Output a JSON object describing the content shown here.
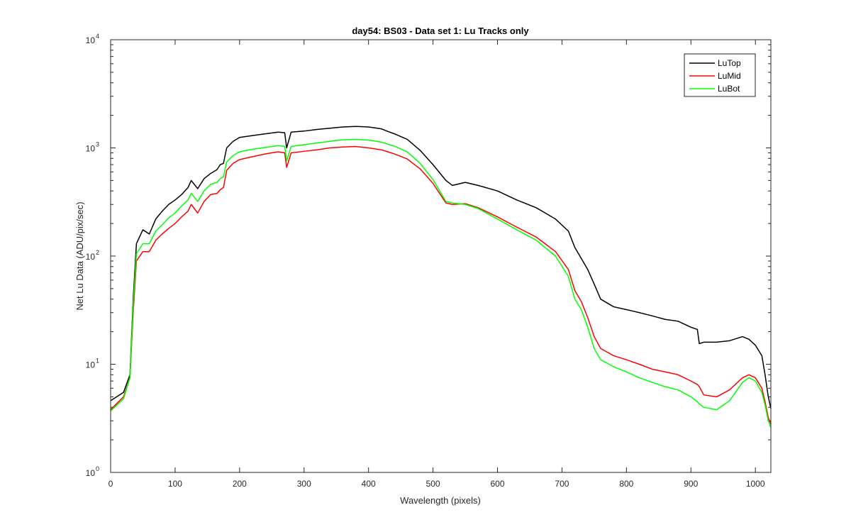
{
  "chart_data": {
    "type": "line",
    "title": "day54: BS03 - Data set 1: Lu Tracks only",
    "xlabel": "Wavelength (pixels)",
    "ylabel": "Net Lu Data (ADU/pix/sec)",
    "xlim": [
      0,
      1024
    ],
    "ylim": [
      1,
      10000
    ],
    "yscale": "log",
    "grid": false,
    "legend_position": "top-right",
    "x_ticks": [
      0,
      100,
      200,
      300,
      400,
      500,
      600,
      700,
      800,
      900,
      1000
    ],
    "y_ticks": [
      {
        "value": 1,
        "base": "10",
        "exp": "0"
      },
      {
        "value": 10,
        "base": "10",
        "exp": "1"
      },
      {
        "value": 100,
        "base": "10",
        "exp": "2"
      },
      {
        "value": 1000,
        "base": "10",
        "exp": "3"
      },
      {
        "value": 10000,
        "base": "10",
        "exp": "4"
      }
    ],
    "x": [
      0,
      20,
      30,
      35,
      40,
      50,
      60,
      70,
      80,
      90,
      100,
      110,
      120,
      125,
      135,
      145,
      155,
      165,
      170,
      175,
      180,
      190,
      200,
      220,
      240,
      260,
      270,
      273,
      280,
      300,
      320,
      340,
      360,
      380,
      400,
      420,
      430,
      440,
      460,
      480,
      500,
      520,
      530,
      550,
      570,
      600,
      630,
      660,
      690,
      710,
      720,
      730,
      740,
      750,
      760,
      780,
      800,
      820,
      840,
      860,
      880,
      900,
      910,
      913,
      920,
      940,
      960,
      980,
      990,
      1000,
      1010,
      1015,
      1020,
      1024
    ],
    "series": [
      {
        "name": "LuTop",
        "color": "#000000",
        "values": [
          4.6,
          5.5,
          8,
          40,
          130,
          175,
          160,
          220,
          260,
          300,
          330,
          370,
          430,
          500,
          420,
          520,
          580,
          630,
          700,
          720,
          1000,
          1150,
          1250,
          1300,
          1350,
          1400,
          1380,
          1000,
          1400,
          1430,
          1480,
          1520,
          1560,
          1580,
          1560,
          1500,
          1420,
          1350,
          1200,
          950,
          700,
          500,
          450,
          480,
          450,
          400,
          330,
          280,
          220,
          170,
          120,
          95,
          75,
          55,
          40,
          34,
          32,
          30,
          28,
          26,
          25,
          22,
          21,
          15.5,
          16,
          16,
          16.5,
          18,
          17,
          15,
          12,
          8,
          5,
          3.9
        ]
      },
      {
        "name": "LuMid",
        "color": "#ff0000",
        "values": [
          3.8,
          5,
          7.5,
          30,
          90,
          110,
          110,
          140,
          160,
          180,
          200,
          230,
          260,
          300,
          250,
          320,
          370,
          380,
          410,
          430,
          620,
          720,
          780,
          830,
          880,
          920,
          900,
          660,
          900,
          930,
          960,
          1000,
          1020,
          1030,
          1000,
          960,
          920,
          880,
          790,
          640,
          470,
          310,
          300,
          305,
          280,
          230,
          185,
          150,
          110,
          75,
          48,
          38,
          27,
          18,
          14,
          12,
          11,
          10,
          9,
          8.5,
          8,
          7,
          6.5,
          6.2,
          5.2,
          5,
          5.8,
          7.5,
          8,
          7.5,
          6,
          4.5,
          3.2,
          2.8
        ]
      },
      {
        "name": "LuBot",
        "color": "#00ff00",
        "values": [
          3.7,
          4.8,
          7.5,
          35,
          105,
          130,
          130,
          170,
          195,
          225,
          250,
          290,
          330,
          380,
          320,
          400,
          460,
          480,
          520,
          540,
          740,
          850,
          920,
          970,
          1010,
          1050,
          1030,
          760,
          1030,
          1070,
          1110,
          1150,
          1190,
          1200,
          1180,
          1130,
          1080,
          1040,
          920,
          720,
          510,
          320,
          310,
          300,
          275,
          220,
          175,
          140,
          100,
          65,
          40,
          32,
          22,
          14,
          11,
          9.5,
          8.5,
          7.5,
          6.8,
          6.2,
          5.8,
          5,
          4.5,
          4.3,
          4,
          3.8,
          4.6,
          6.8,
          7.5,
          7,
          5.5,
          4.2,
          3,
          2.6
        ]
      }
    ]
  }
}
